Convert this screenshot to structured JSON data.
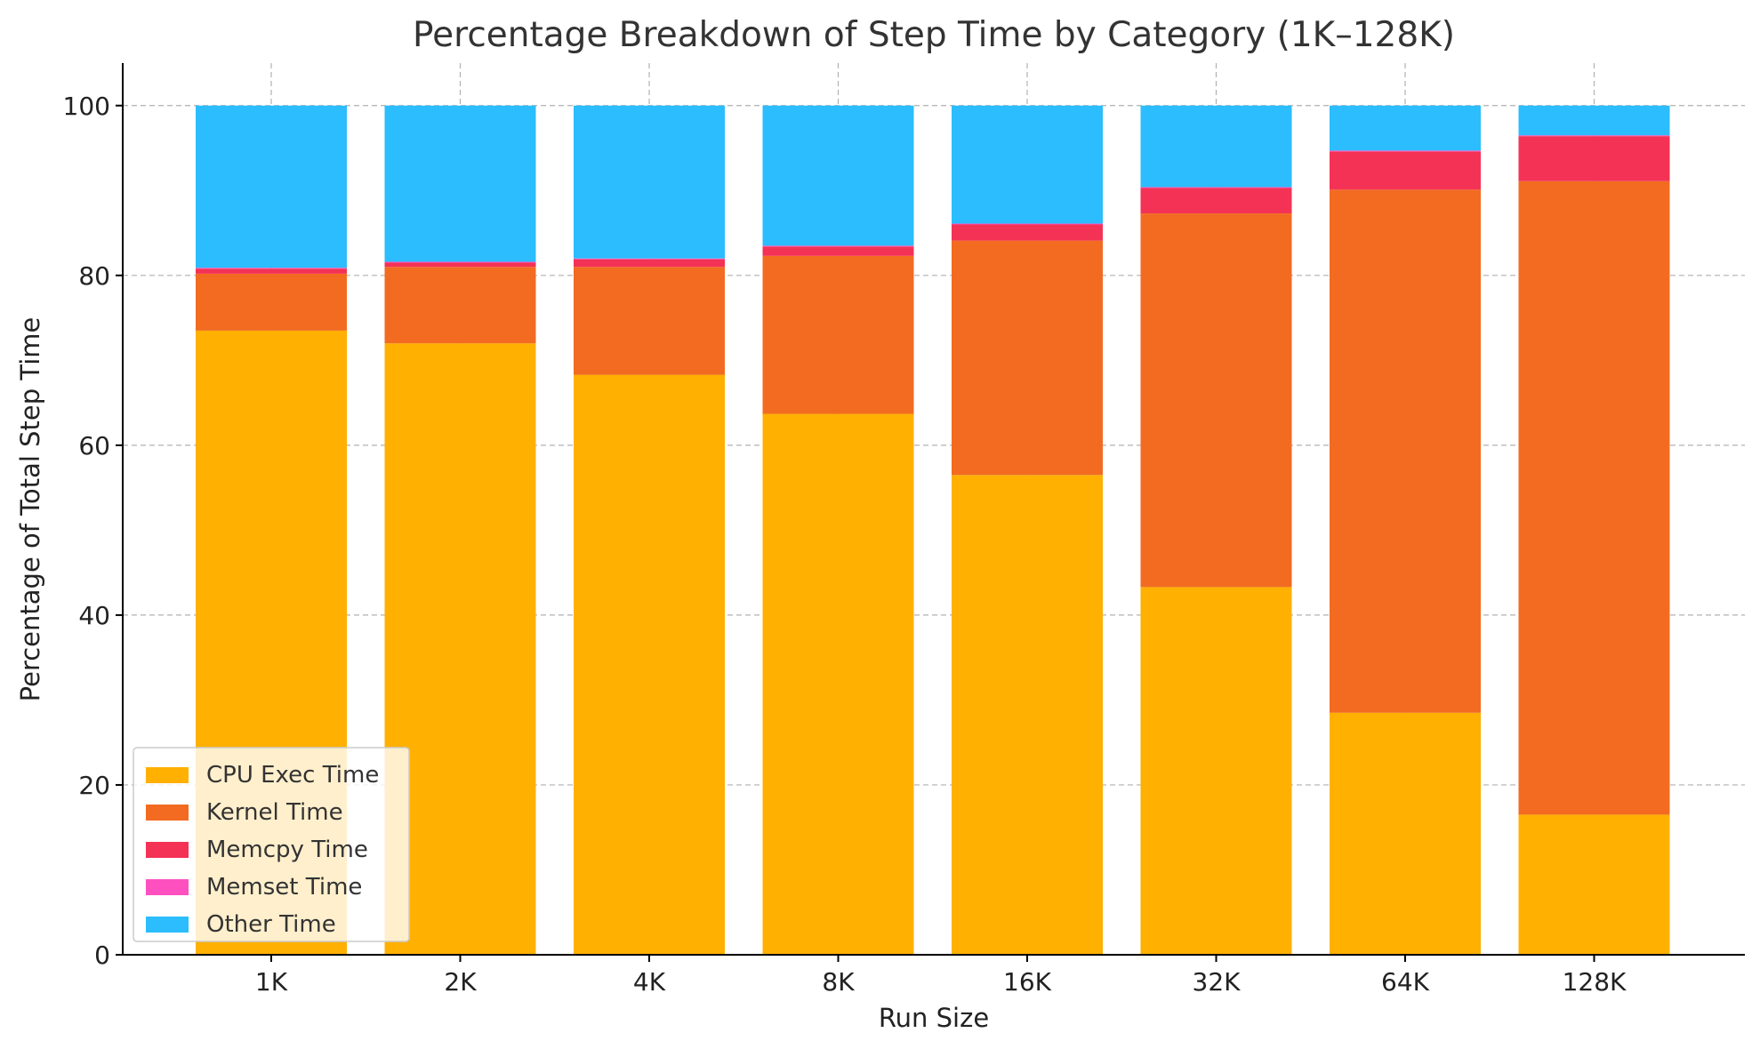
{
  "chart_data": {
    "type": "bar",
    "stacked": true,
    "title": "Percentage Breakdown of Step Time by Category (1K–128K)",
    "xlabel": "Run Size",
    "ylabel": "Percentage of Total Step Time",
    "categories": [
      "1K",
      "2K",
      "4K",
      "8K",
      "16K",
      "32K",
      "64K",
      "128K"
    ],
    "ylim": [
      0,
      105
    ],
    "yticks": [
      0,
      20,
      40,
      60,
      80,
      100
    ],
    "grid": true,
    "legend_position": "lower-left",
    "series": [
      {
        "name": "CPU Exec Time",
        "color": "#FFB000",
        "values": [
          73.5,
          72.0,
          68.3,
          63.7,
          56.5,
          43.3,
          28.5,
          16.5
        ]
      },
      {
        "name": "Kernel Time",
        "color": "#F26B21",
        "values": [
          6.7,
          9.0,
          12.7,
          18.6,
          27.6,
          44.0,
          61.6,
          74.6
        ]
      },
      {
        "name": "Memcpy Time",
        "color": "#F43255",
        "values": [
          0.6,
          0.5,
          0.9,
          1.1,
          1.9,
          3.0,
          4.5,
          5.3
        ]
      },
      {
        "name": "Memset Time",
        "color": "#FF50C0",
        "values": [
          0.1,
          0.1,
          0.1,
          0.1,
          0.1,
          0.1,
          0.1,
          0.1
        ]
      },
      {
        "name": "Other Time",
        "color": "#2BBDFD",
        "values": [
          19.1,
          18.4,
          18.0,
          16.5,
          13.9,
          9.6,
          5.3,
          3.5
        ]
      }
    ]
  }
}
